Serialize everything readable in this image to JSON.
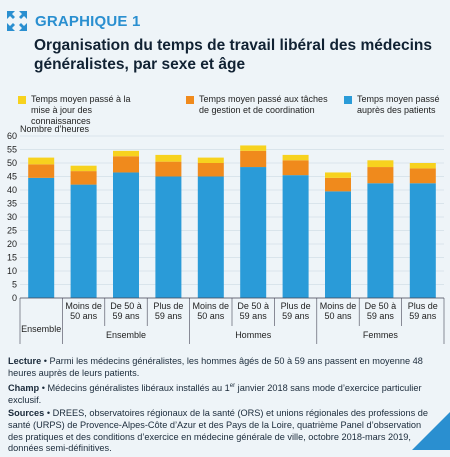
{
  "header": {
    "label": "GRAPHIQUE 1",
    "title": "Organisation du temps de travail libéral des médecins généralistes, par sexe et âge"
  },
  "legend": [
    {
      "name": "Temps moyen passé à la mise à jour des connaissances",
      "color": "#f7d21e"
    },
    {
      "name": "Temps moyen passé aux tâches de gestion et de coordination",
      "color": "#f08a1c"
    },
    {
      "name": "Temps moyen passé auprès des patients",
      "color": "#2a9bd8"
    }
  ],
  "chart_data": {
    "type": "bar",
    "stacked": true,
    "ylabel": "Nombre d’heures",
    "ylim": [
      0,
      60
    ],
    "yticks": [
      0,
      5,
      10,
      15,
      20,
      25,
      30,
      35,
      40,
      45,
      50,
      55,
      60
    ],
    "grid": true,
    "categories": [
      "Ensemble",
      "Moins de 50 ans",
      "De 50 à 59 ans",
      "Plus de 59 ans",
      "Moins de 50 ans",
      "De 50 à 59 ans",
      "Plus de 59 ans",
      "Moins de 50 ans",
      "De 50 à 59 ans",
      "Plus de 59 ans"
    ],
    "category_labels": [
      [
        "Ensemble"
      ],
      [
        "Moins de",
        "50 ans"
      ],
      [
        "De 50 à",
        "59 ans"
      ],
      [
        "Plus de",
        "59 ans"
      ],
      [
        "Moins de",
        "50 ans"
      ],
      [
        "De 50 à",
        "59 ans"
      ],
      [
        "Plus de",
        "59 ans"
      ],
      [
        "Moins de",
        "50 ans"
      ],
      [
        "De 50 à",
        "59 ans"
      ],
      [
        "Plus de",
        "59 ans"
      ]
    ],
    "groups": [
      {
        "label": "Ensemble",
        "start": 1,
        "end": 3
      },
      {
        "label": "Hommes",
        "start": 4,
        "end": 6
      },
      {
        "label": "Femmes",
        "start": 7,
        "end": 9
      }
    ],
    "series": [
      {
        "name": "Temps moyen passé auprès des patients",
        "color": "#2a9bd8",
        "values": [
          44.5,
          42,
          46.5,
          45,
          45,
          48.5,
          45.5,
          39.5,
          42.5,
          42.5
        ]
      },
      {
        "name": "Temps moyen passé aux tâches de gestion et de coordination",
        "color": "#f08a1c",
        "values": [
          5,
          5,
          6,
          5.5,
          5,
          6,
          5.5,
          5,
          6,
          5.5
        ]
      },
      {
        "name": "Temps moyen passé à la mise à jour des connaissances",
        "color": "#f7d21e",
        "values": [
          2.5,
          2,
          2,
          2.5,
          2,
          2,
          2,
          2,
          2.5,
          2
        ]
      }
    ]
  },
  "notes": {
    "lecture_label": "Lecture",
    "lecture_text": " • Parmi les médecins généralistes, les hommes âgés de 50 à 59 ans passent en moyenne 48 heures auprès de leurs patients.",
    "champ_label": "Champ",
    "champ_text_1": " • Médecins généralistes libéraux installés au 1",
    "champ_sup": "er",
    "champ_text_2": " janvier 2018 sans mode d’exercice particulier exclusif.",
    "sources_label": "Sources",
    "sources_text": " • DREES, observatoires régionaux de la santé (ORS) et unions régionales des professions de santé (URPS) de Provence-Alpes-Côte d’Azur et des Pays de la Loire, quatrième Panel d’observation des pratiques et des conditions d’exercice en médecine générale de ville, octobre 2018-mars 2019, données semi-définitives."
  }
}
